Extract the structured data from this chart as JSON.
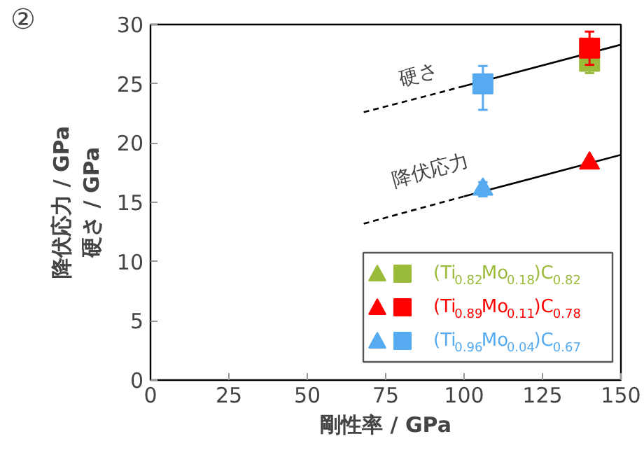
{
  "chart_data": {
    "type": "scatter",
    "title": "②",
    "xlabel": "剛性率 / GPa",
    "ylabel": "降伏応力 / GPa\n硬さ / GPa",
    "xlim": [
      0,
      150
    ],
    "ylim": [
      0,
      30
    ],
    "xticks": [
      0,
      25,
      50,
      75,
      100,
      125,
      150
    ],
    "yticks": [
      0,
      5,
      10,
      15,
      20,
      25,
      30
    ],
    "grid": false,
    "legend": "bottom right",
    "series": [
      {
        "type": "line",
        "color": "#000000",
        "line_style": "dashed",
        "marker": "none",
        "x": [
          68,
          100
        ],
        "values": [
          22.6,
          24.8
        ]
      },
      {
        "type": "line",
        "color": "#000000",
        "line_style": "solid",
        "marker": "none",
        "x": [
          100,
          150
        ],
        "values": [
          24.8,
          28.3
        ]
      },
      {
        "type": "line",
        "color": "#000000",
        "line_style": "dashed",
        "marker": "none",
        "x": [
          68,
          100
        ],
        "values": [
          13.2,
          15.5
        ]
      },
      {
        "type": "line",
        "color": "#000000",
        "line_style": "solid",
        "marker": "none",
        "x": [
          100,
          150
        ],
        "values": [
          15.5,
          19.0
        ]
      },
      {
        "marker": "triangle",
        "color": "#9bbb3b"
      },
      {
        "name": "(Ti$_{0.82}$Mo$_{0.18}$)C$_{0.82}$",
        "marker": "square",
        "color": "#9bbb3b",
        "x": [
          140
        ],
        "values": [
          26.9
        ],
        "errors": [
          1.0
        ]
      },
      {
        "marker": "triangle",
        "color": "#ff0000",
        "x": [
          140
        ],
        "values": [
          18.3
        ]
      },
      {
        "name": "(Ti$_{0.89}$Mo$_{0.11}$)C$_{0.78}$",
        "marker": "square",
        "color": "#ff0000",
        "x": [
          140
        ],
        "values": [
          28.0
        ],
        "errors": [
          1.4
        ]
      },
      {
        "marker": "triangle",
        "color": "#55aaf0",
        "x": [
          106
        ],
        "values": [
          16.1
        ],
        "errors": [
          0.6
        ]
      },
      {
        "name": "(Ti$_{0.96}$Mo$_{0.04}$)C$_{0.67}$",
        "marker": "square",
        "color": "#55aaf0",
        "x": [
          106
        ],
        "values": [
          25.0
        ],
        "errors": [
          [
            22.8,
            26.5
          ]
        ]
      }
    ],
    "annotations": [
      "硬さ",
      "降伏応力"
    ]
  }
}
